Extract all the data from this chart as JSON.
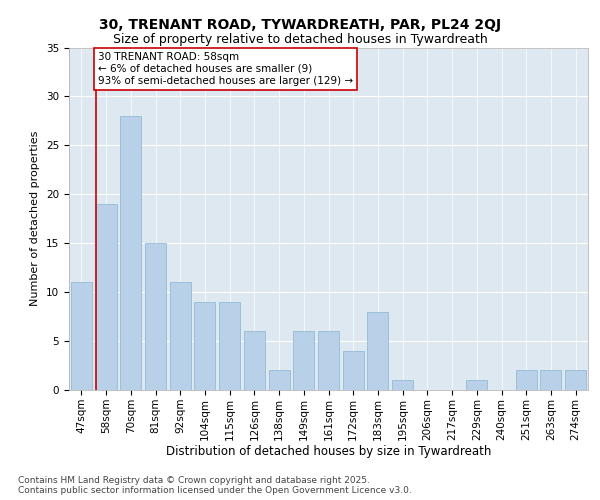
{
  "title": "30, TRENANT ROAD, TYWARDREATH, PAR, PL24 2QJ",
  "subtitle": "Size of property relative to detached houses in Tywardreath",
  "xlabel": "Distribution of detached houses by size in Tywardreath",
  "ylabel": "Number of detached properties",
  "categories": [
    "47sqm",
    "58sqm",
    "70sqm",
    "81sqm",
    "92sqm",
    "104sqm",
    "115sqm",
    "126sqm",
    "138sqm",
    "149sqm",
    "161sqm",
    "172sqm",
    "183sqm",
    "195sqm",
    "206sqm",
    "217sqm",
    "229sqm",
    "240sqm",
    "251sqm",
    "263sqm",
    "274sqm"
  ],
  "values": [
    11,
    19,
    28,
    15,
    11,
    9,
    9,
    6,
    2,
    6,
    6,
    4,
    8,
    1,
    0,
    0,
    1,
    0,
    2,
    2,
    2
  ],
  "bar_color": "#b8d0e8",
  "bar_edge_color": "#89b4d4",
  "highlight_index": 1,
  "highlight_color": "#cc0000",
  "annotation_text": "30 TRENANT ROAD: 58sqm\n← 6% of detached houses are smaller (9)\n93% of semi-detached houses are larger (129) →",
  "annotation_box_color": "#ffffff",
  "annotation_box_edge": "#cc0000",
  "ylim": [
    0,
    35
  ],
  "yticks": [
    0,
    5,
    10,
    15,
    20,
    25,
    30,
    35
  ],
  "background_color": "#dde8f0",
  "footer": "Contains HM Land Registry data © Crown copyright and database right 2025.\nContains public sector information licensed under the Open Government Licence v3.0.",
  "title_fontsize": 10,
  "subtitle_fontsize": 9,
  "xlabel_fontsize": 8.5,
  "ylabel_fontsize": 8,
  "tick_fontsize": 7.5,
  "annotation_fontsize": 7.5,
  "footer_fontsize": 6.5
}
